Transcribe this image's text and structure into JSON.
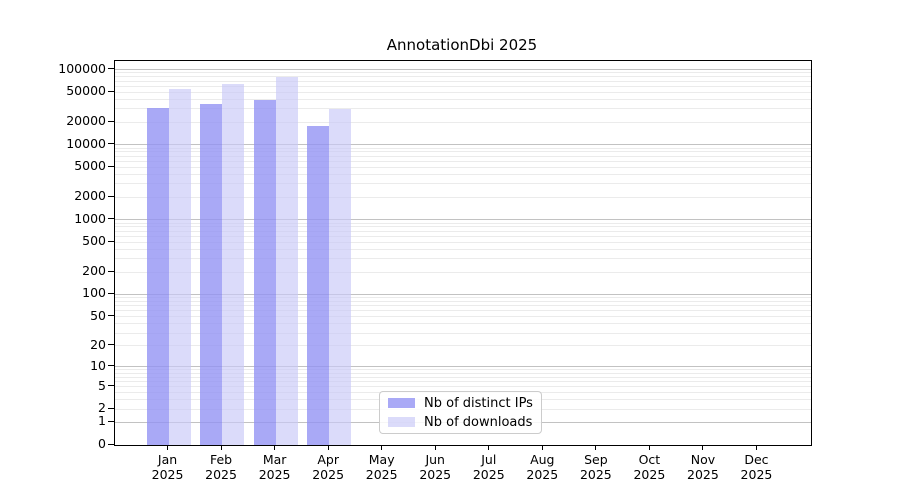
{
  "chart_data": {
    "type": "bar",
    "title": "AnnotationDbi 2025",
    "categories": [
      "Jan 2025",
      "Feb 2025",
      "Mar 2025",
      "Apr 2025",
      "May 2025",
      "Jun 2025",
      "Jul 2025",
      "Aug 2025",
      "Sep 2025",
      "Oct 2025",
      "Nov 2025",
      "Dec 2025"
    ],
    "series": [
      {
        "name": "Nb of distinct IPs",
        "color": "rgba(145,145,243,0.78)",
        "values": [
          30500,
          35000,
          39500,
          17800,
          null,
          null,
          null,
          null,
          null,
          null,
          null,
          null
        ]
      },
      {
        "name": "Nb of downloads",
        "color": "rgba(200,200,248,0.65)",
        "values": [
          55500,
          64000,
          78500,
          29500,
          null,
          null,
          null,
          null,
          null,
          null,
          null,
          null
        ]
      }
    ],
    "xlabel": "",
    "ylabel": "",
    "y_axis": {
      "scale": "log1p",
      "min": 0,
      "max": 130000,
      "tick_values": [
        0,
        1,
        2,
        5,
        10,
        20,
        50,
        100,
        200,
        500,
        1000,
        2000,
        5000,
        10000,
        20000,
        50000,
        100000
      ],
      "tick_labels": [
        "0",
        "1",
        "2",
        "5",
        "10",
        "20",
        "50",
        "100",
        "200",
        "500",
        "1000",
        "2000",
        "5000",
        "10000",
        "20000",
        "50000",
        "100000"
      ]
    },
    "grid": {
      "horizontal": true,
      "vertical": false,
      "major_color": "#c2c2c2",
      "minor_color": "#ebebeb"
    },
    "legend_position": "inside-bottom-center",
    "colors": {
      "distinct_ips_on_white": "#a9a9f5",
      "downloads_on_white": "#dbdbfa",
      "axis": "#000000",
      "background": "#ffffff"
    }
  }
}
